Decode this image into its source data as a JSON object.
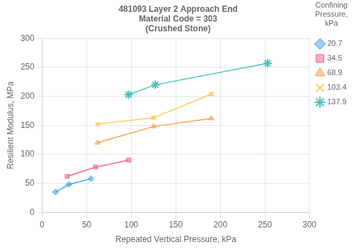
{
  "chart_data": {
    "type": "line",
    "title": "481093 Layer 2 Approach End\nMaterial Code = 303\n(Crushed Stone)",
    "xlabel": "Repeated Vertical Pressure, kPa",
    "ylabel": "Resilient Modulus, MPa",
    "xlim": [
      0,
      300
    ],
    "ylim": [
      0,
      300
    ],
    "xticks": [
      0,
      50,
      100,
      150,
      200,
      250,
      300
    ],
    "yticks": [
      0,
      50,
      100,
      150,
      200,
      250,
      300
    ],
    "grid": true,
    "legend": "right",
    "legend_title": "Confining\nPressure,\nkPa",
    "series": [
      {
        "name": "20.7",
        "marker": "diamond",
        "x": [
          15,
          30,
          55
        ],
        "values": [
          35,
          48,
          58
        ]
      },
      {
        "name": "34.5",
        "marker": "square",
        "x": [
          28,
          60,
          97
        ],
        "values": [
          62,
          78,
          90
        ]
      },
      {
        "name": "68.9",
        "marker": "triangle",
        "x": [
          62,
          125,
          190
        ],
        "values": [
          120,
          148,
          162
        ]
      },
      {
        "name": "103.4",
        "marker": "x",
        "x": [
          62,
          125,
          190
        ],
        "values": [
          152,
          163,
          204
        ]
      },
      {
        "name": "137.9",
        "marker": "star",
        "x": [
          97,
          127,
          253
        ],
        "values": [
          203,
          220,
          257
        ]
      }
    ]
  }
}
